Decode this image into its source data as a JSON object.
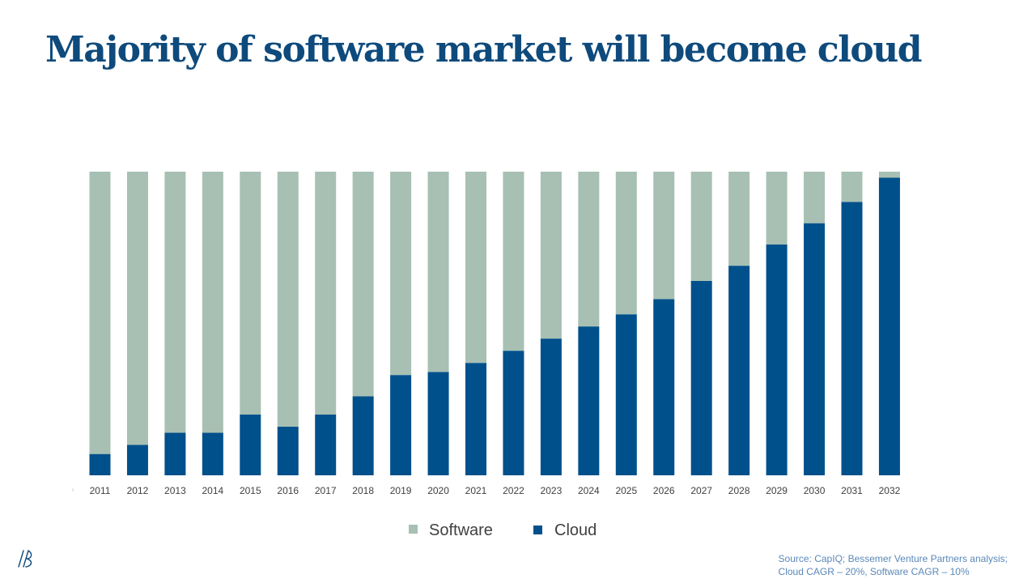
{
  "title": "Majority of software market will become cloud",
  "colors": {
    "software": "#a7c0b3",
    "cloud": "#00508c",
    "title": "#0e4a7c",
    "source": "#5a88b8"
  },
  "chart_data": {
    "type": "bar",
    "stacked": true,
    "normalized": true,
    "categories": [
      "2011",
      "2012",
      "2013",
      "2014",
      "2015",
      "2016",
      "2017",
      "2018",
      "2019",
      "2020",
      "2021",
      "2022",
      "2023",
      "2024",
      "2025",
      "2026",
      "2027",
      "2028",
      "2029",
      "2030",
      "2031",
      "2032"
    ],
    "series": [
      {
        "name": "Cloud",
        "color": "#00508c",
        "values": [
          7,
          10,
          14,
          14,
          20,
          16,
          20,
          26,
          33,
          34,
          37,
          41,
          45,
          49,
          53,
          58,
          64,
          69,
          76,
          83,
          90,
          98
        ]
      },
      {
        "name": "Software",
        "color": "#a7c0b3",
        "values": [
          93,
          90,
          86,
          86,
          80,
          84,
          80,
          74,
          67,
          66,
          63,
          59,
          55,
          51,
          47,
          42,
          36,
          31,
          24,
          17,
          10,
          2
        ]
      }
    ],
    "ylim": [
      0,
      100
    ],
    "xlabel": "",
    "ylabel": "",
    "legend": [
      "Software",
      "Cloud"
    ],
    "legend_position": "bottom-center",
    "grid": false
  },
  "source": {
    "line1": "Source: CapIQ; Bessemer Venture Partners analysis;",
    "line2": "Cloud CAGR – 20%, Software CAGR – 10%"
  },
  "logo_icon": "bessemer-logo-icon"
}
